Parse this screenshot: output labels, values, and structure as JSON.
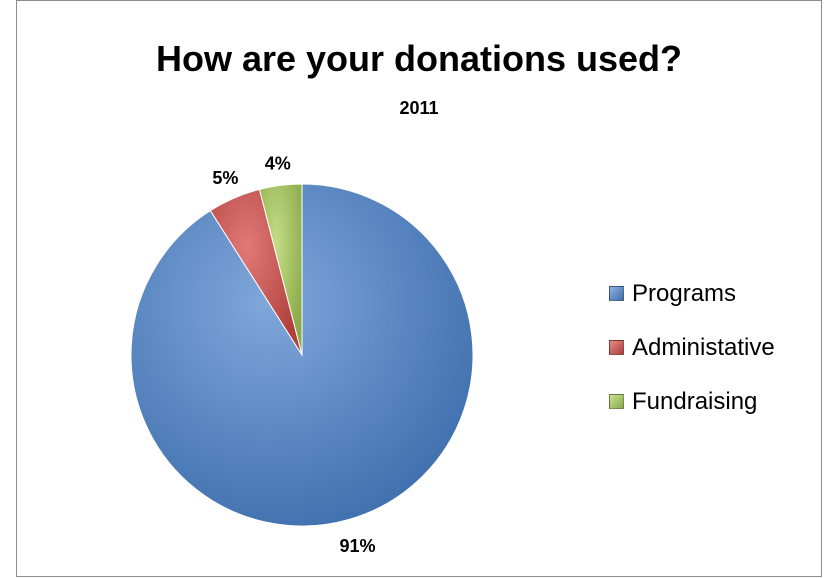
{
  "chart_data": {
    "type": "pie",
    "title": "How are your donations used?",
    "subtitle": "2011",
    "categories": [
      "Programs",
      "Administative",
      "Fundraising"
    ],
    "values": [
      91,
      5,
      4
    ],
    "data_labels": [
      "91%",
      "5%",
      "4%"
    ],
    "colors": [
      "#4F81BD",
      "#C0504D",
      "#9BBB59"
    ],
    "legend_position": "right",
    "start_angle": "12 o'clock",
    "direction": "clockwise"
  }
}
